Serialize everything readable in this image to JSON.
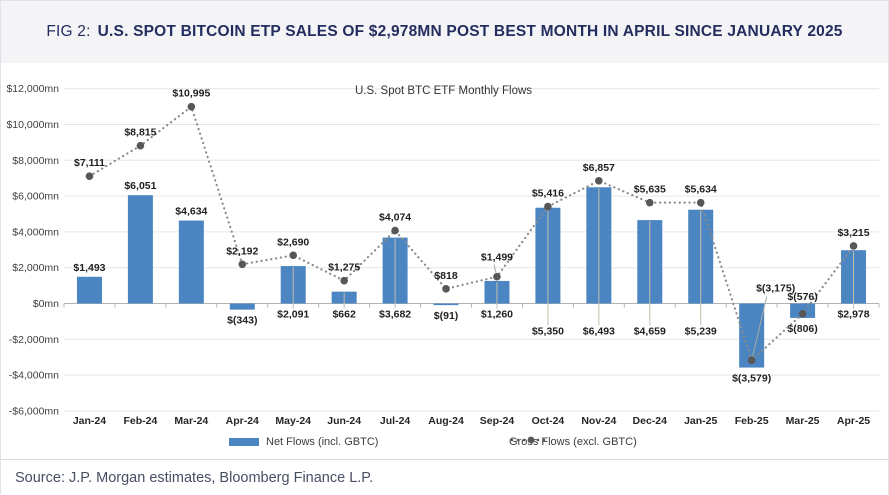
{
  "figure": {
    "fig_label": "FIG 2:",
    "title": "U.S. SPOT BITCOIN ETP SALES OF $2,978MN POST BEST MONTH IN APRIL SINCE JANUARY 2025"
  },
  "source": "Source: J.P. Morgan estimates, Bloomberg Finance L.P.",
  "colors": {
    "bar": "#4B86C2",
    "marker_dot": "#575757",
    "dotted_line": "#8a8a8a",
    "grid": "#e7e6e3",
    "axis": "#b3b3b3",
    "leader": "#c7bcab",
    "gross_leader": "#a6a6a6",
    "value_label": "#1f1f1f",
    "axis_label": "#3f3f3f",
    "header_navy": "#232d5f"
  },
  "chart_data": {
    "type": "combo (bar + dotted line)",
    "title": "U.S. Spot BTC ETF Monthly Flows",
    "categories": [
      "Jan-24",
      "Feb-24",
      "Mar-24",
      "Apr-24",
      "May-24",
      "Jun-24",
      "Jul-24",
      "Aug-24",
      "Sep-24",
      "Oct-24",
      "Nov-24",
      "Dec-24",
      "Jan-25",
      "Feb-25",
      "Mar-25",
      "Apr-25"
    ],
    "ylim": [
      -6000,
      12000
    ],
    "ytick_step": 2000,
    "ytick_labels": [
      "$12,000mn",
      "$10,000mn",
      "$8,000mn",
      "$6,000mn",
      "$4,000mn",
      "$2,000mn",
      "$0mn",
      "-$2,000mn",
      "-$4,000mn",
      "-$6,000mn"
    ],
    "grid": true,
    "legend_position": "bottom",
    "series": [
      {
        "name": "Net Flows (incl. GBTC)",
        "type": "bar",
        "values": [
          1493,
          6051,
          4634,
          -343,
          2091,
          662,
          3682,
          -91,
          1260,
          5350,
          6493,
          4659,
          5239,
          -3579,
          -806,
          2978
        ],
        "labels": [
          "$1,493",
          "$6,051",
          "$4,634",
          "$(343)",
          "$2,091",
          "$662",
          "$3,682",
          "$(91)",
          "$1,260",
          "$5,350",
          "$6,493",
          "$4,659",
          "$5,239",
          "$(3,579)",
          "$(806)",
          "$2,978"
        ]
      },
      {
        "name": "Gross Flows (excl. GBTC)",
        "type": "dotted_line",
        "values": [
          7111,
          8815,
          10995,
          2192,
          2690,
          1275,
          4074,
          818,
          1499,
          5416,
          6857,
          5635,
          5634,
          -3175,
          -576,
          3215
        ],
        "labels": [
          "$7,111",
          "$8,815",
          "$10,995",
          "$2,192",
          "$2,690",
          "$1,275",
          "$4,074",
          "$818",
          "$1,499",
          "$5,416",
          "$6,857",
          "$5,635",
          "$5,634",
          "$(3,175)",
          "$(576)",
          "$3,215"
        ]
      }
    ]
  }
}
